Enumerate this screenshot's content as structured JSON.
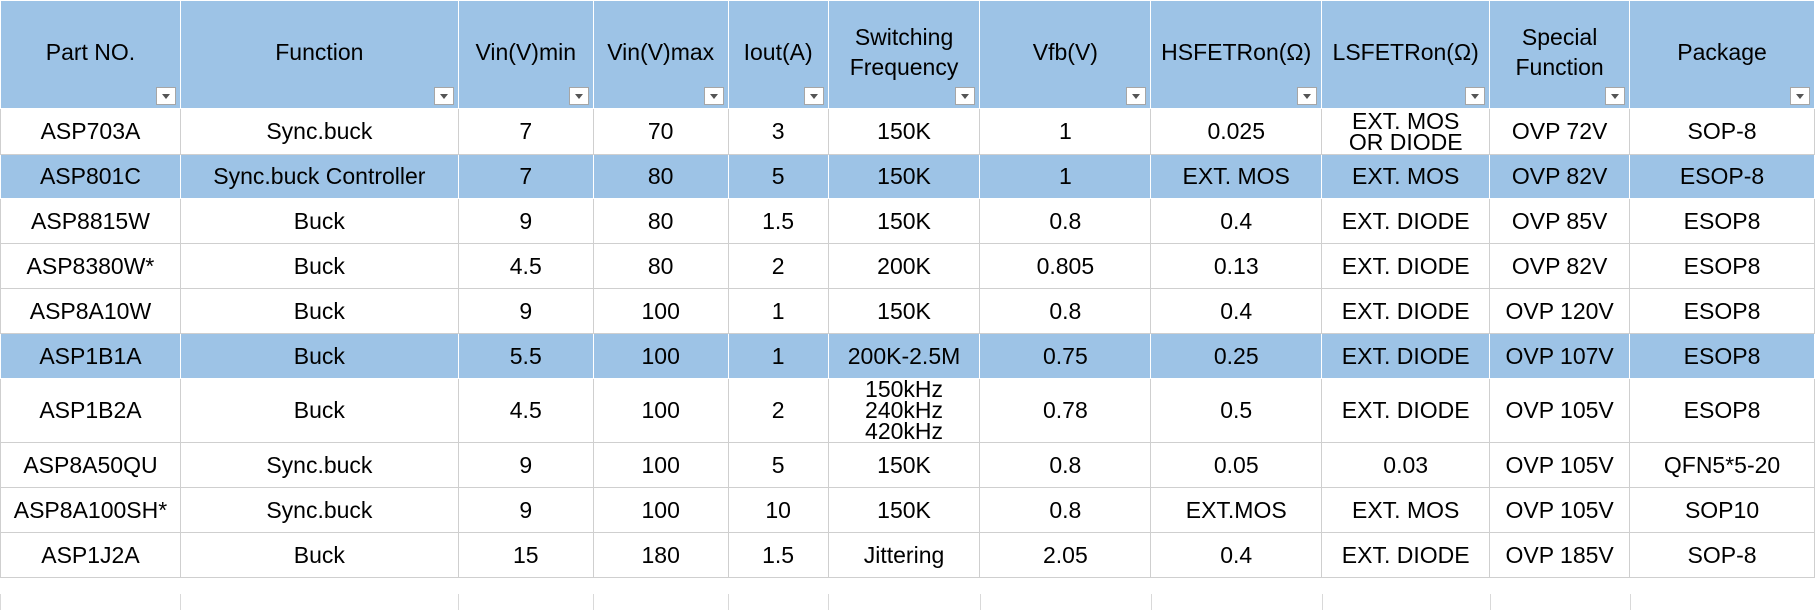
{
  "table": {
    "headers": [
      "Part NO.",
      "Function",
      "Vin(V)min",
      "Vin(V)max",
      "Iout(A)",
      "Switching\nFrequency",
      "Vfb(V)",
      "HSFETRon(Ω)",
      "LSFETRon(Ω)",
      "Special\nFunction",
      "Package"
    ],
    "rows": [
      [
        "ASP703A",
        "Sync.buck",
        "7",
        "70",
        "3",
        "150K",
        "1",
        "0.025",
        "EXT. MOS\nOR DIODE",
        "OVP 72V",
        "SOP-8"
      ],
      [
        "ASP801C",
        "Sync.buck Controller",
        "7",
        "80",
        "5",
        "150K",
        "1",
        "EXT. MOS",
        "EXT. MOS",
        "OVP 82V",
        "ESOP-8"
      ],
      [
        "ASP8815W",
        "Buck",
        "9",
        "80",
        "1.5",
        "150K",
        "0.8",
        "0.4",
        "EXT. DIODE",
        "OVP 85V",
        "ESOP8"
      ],
      [
        "ASP8380W*",
        "Buck",
        "4.5",
        "80",
        "2",
        "200K",
        "0.805",
        "0.13",
        "EXT. DIODE",
        "OVP 82V",
        "ESOP8"
      ],
      [
        "ASP8A10W",
        "Buck",
        "9",
        "100",
        "1",
        "150K",
        "0.8",
        "0.4",
        "EXT. DIODE",
        "OVP 120V",
        "ESOP8"
      ],
      [
        "ASP1B1A",
        "Buck",
        "5.5",
        "100",
        "1",
        "200K-2.5M",
        "0.75",
        "0.25",
        "EXT. DIODE",
        "OVP 107V",
        "ESOP8"
      ],
      [
        "ASP1B2A",
        "Buck",
        "4.5",
        "100",
        "2",
        "150kHz\n240kHz\n420kHz",
        "0.78",
        "0.5",
        "EXT. DIODE",
        "OVP 105V",
        "ESOP8"
      ],
      [
        "ASP8A50QU",
        "Sync.buck",
        "9",
        "100",
        "5",
        "150K",
        "0.8",
        "0.05",
        "0.03",
        "OVP 105V",
        "QFN5*5-20"
      ],
      [
        "ASP8A100SH*",
        "Sync.buck",
        "9",
        "100",
        "10",
        "150K",
        "0.8",
        "EXT.MOS",
        "EXT. MOS",
        "OVP 105V",
        "SOP10"
      ],
      [
        "ASP1J2A",
        "Buck",
        "15",
        "180",
        "1.5",
        "Jittering",
        "2.05",
        "0.4",
        "EXT. DIODE",
        "OVP 185V",
        "SOP-8"
      ]
    ],
    "highlighted_rows": [
      1,
      5
    ],
    "header_fill": "#9dc3e6"
  }
}
